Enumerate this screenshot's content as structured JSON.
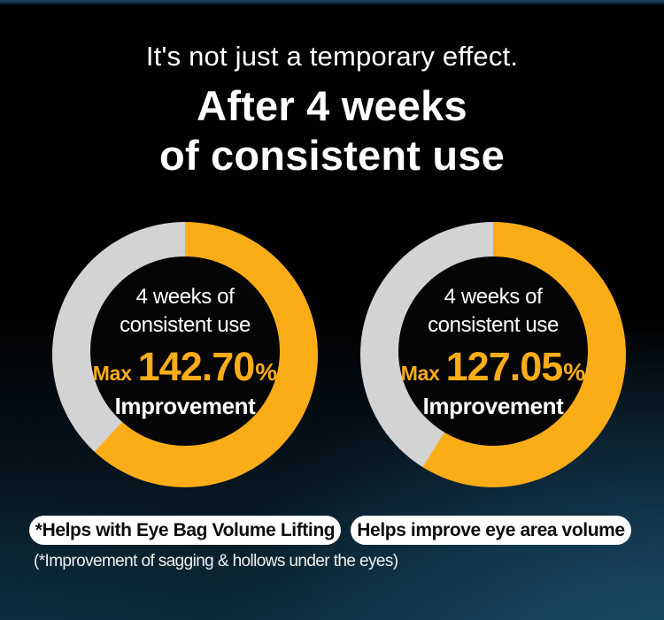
{
  "header": {
    "subtitle": "It's not just a temporary effect.",
    "title_line1": "After 4 weeks",
    "title_line2": "of consistent use"
  },
  "charts": [
    {
      "center_line1": "4 weeks of",
      "center_line2": "consistent use",
      "max_label": "Max",
      "value": "142.70",
      "percent_sign": "%",
      "improvement_label": "Improvement",
      "arc_deg": 223,
      "caption": "*Helps with Eye Bag Volume Lifting"
    },
    {
      "center_line1": "4 weeks of",
      "center_line2": "consistent use",
      "max_label": "Max",
      "value": "127.05",
      "percent_sign": "%",
      "improvement_label": "Improvement",
      "arc_deg": 212,
      "caption": "Helps improve eye area volume"
    }
  ],
  "footnote": "(*Improvement of sagging & hollows under the eyes)",
  "colors": {
    "accent_yellow": "#FBAD17",
    "ring_gray": "#D3D3D4",
    "donut_center": "#050506",
    "pill_bg": "#FFFFFF",
    "pill_text": "#0D0D0D",
    "background_teal": "#0C2838",
    "text_white": "#FFFFFF"
  },
  "chart_data": [
    {
      "type": "pie",
      "subtype": "donut",
      "title": "4 weeks of consistent use — Max 142.70% Improvement",
      "caption": "*Helps with Eye Bag Volume Lifting",
      "center_text": [
        "4 weeks of",
        "consistent use",
        "Max 142.70%",
        "Improvement"
      ],
      "slices": [
        {
          "label": "improvement",
          "sweep_deg": 223,
          "fraction": 0.62,
          "color": "#FBAD17"
        },
        {
          "label": "remainder",
          "sweep_deg": 137,
          "fraction": 0.38,
          "color": "#D3D3D4"
        }
      ],
      "start_angle_deg": 0,
      "direction": "clockwise",
      "legend": "none"
    },
    {
      "type": "pie",
      "subtype": "donut",
      "title": "4 weeks of consistent use — Max 127.05% Improvement",
      "caption": "Helps improve eye area volume",
      "center_text": [
        "4 weeks of",
        "consistent use",
        "Max 127.05%",
        "Improvement"
      ],
      "slices": [
        {
          "label": "improvement",
          "sweep_deg": 212,
          "fraction": 0.59,
          "color": "#FBAD17"
        },
        {
          "label": "remainder",
          "sweep_deg": 148,
          "fraction": 0.41,
          "color": "#D3D3D4"
        }
      ],
      "start_angle_deg": 0,
      "direction": "clockwise",
      "legend": "none"
    }
  ]
}
